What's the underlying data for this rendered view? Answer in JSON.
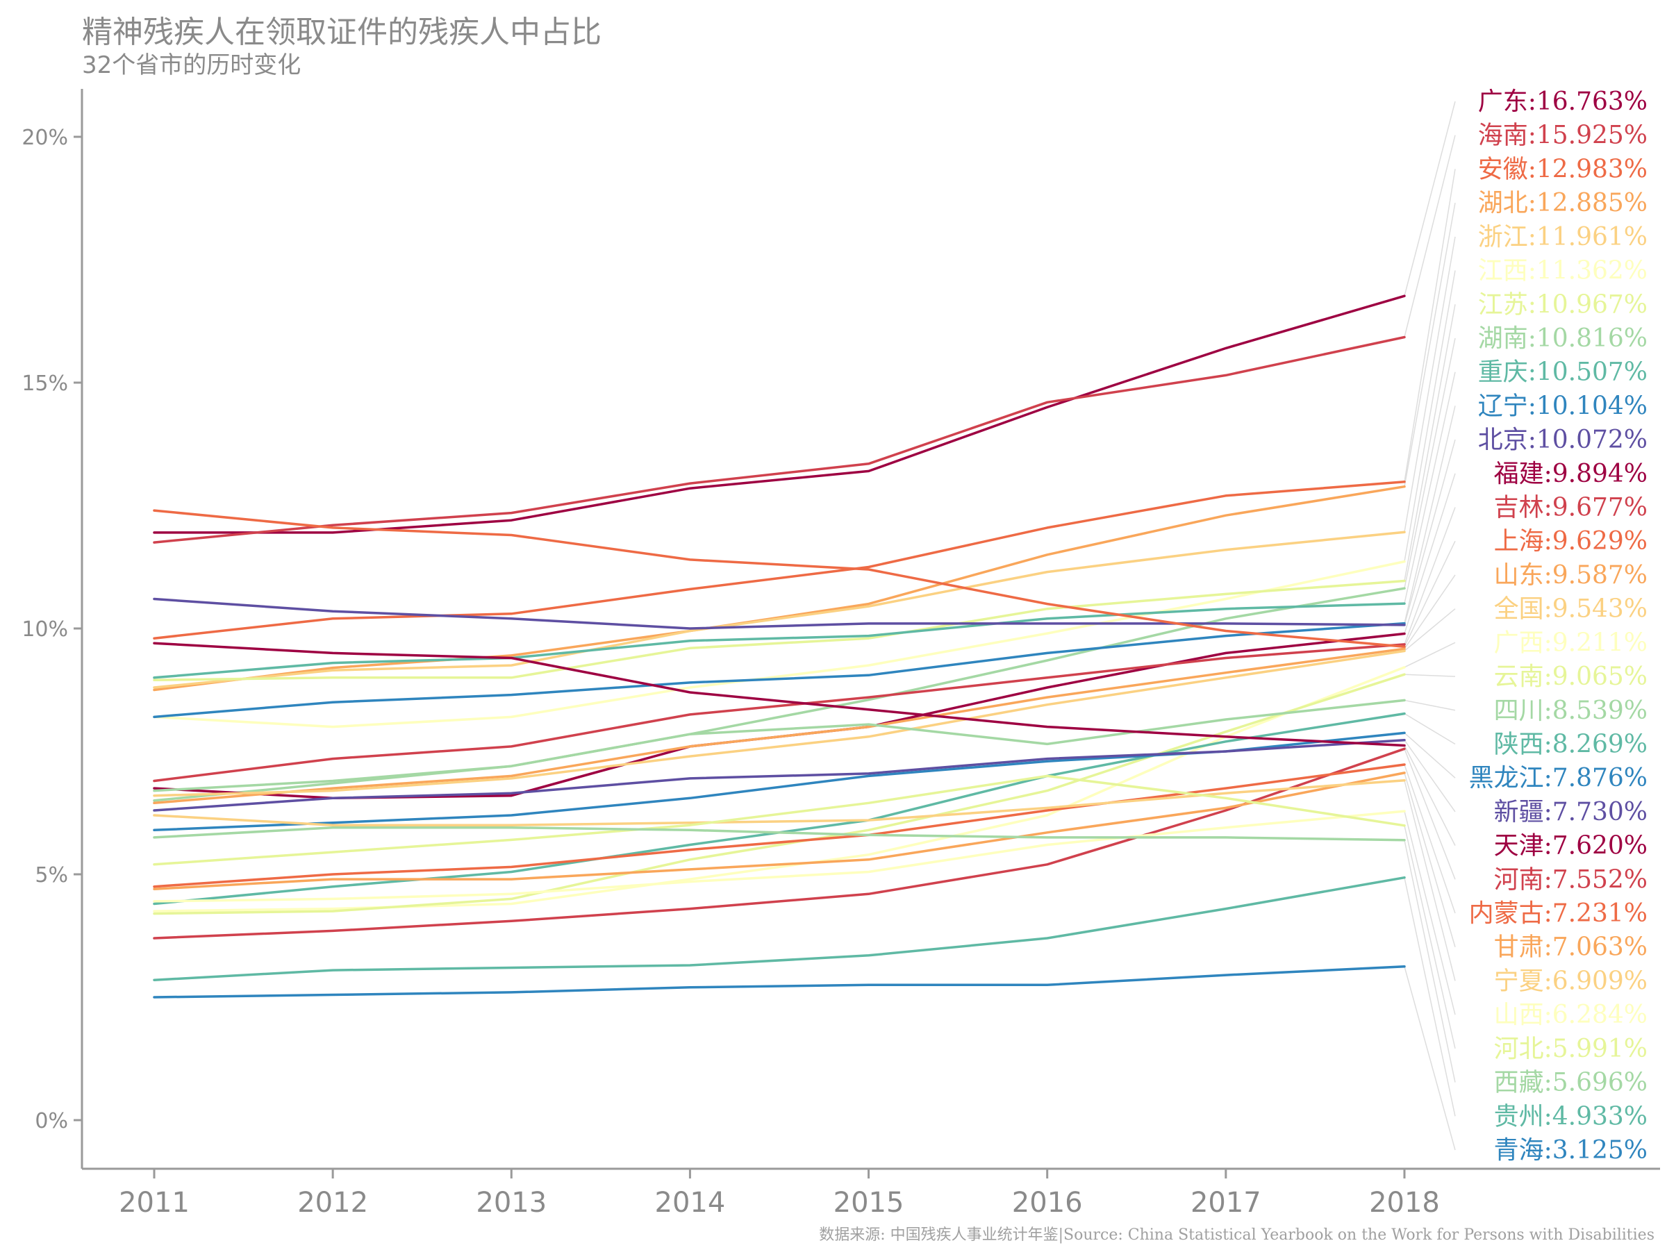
{
  "title": "精神残疾人在领取证件的残疾人中占比",
  "subtitle": "32个省市的历时变化",
  "source": "数据来源: 中国残疾人事业统计年鉴|Source: China Statistical Yearbook on the Work for Persons with Disabilities",
  "chart_data": {
    "type": "line",
    "title": "精神残疾人在领取证件的残疾人中占比",
    "subtitle": "32个省市的历时变化",
    "xlabel": "",
    "ylabel": "",
    "x": [
      "2011",
      "2012",
      "2013",
      "2014",
      "2015",
      "2016",
      "2017",
      "2018"
    ],
    "y_ticks": [
      "0%",
      "5%",
      "10%",
      "15%",
      "20%"
    ],
    "ylim": [
      -1,
      21
    ],
    "grid": false,
    "series": [
      {
        "name": "广东",
        "label": "广东:16.763%",
        "color": "#9e0142",
        "values": [
          11.95,
          11.95,
          12.2,
          12.85,
          13.2,
          14.5,
          15.7,
          16.763
        ]
      },
      {
        "name": "海南",
        "label": "海南:15.925%",
        "color": "#d0414d",
        "values": [
          11.75,
          12.1,
          12.35,
          12.95,
          13.35,
          14.6,
          15.15,
          15.925
        ]
      },
      {
        "name": "安徽",
        "label": "安徽:12.983%",
        "color": "#ee6a45",
        "values": [
          9.8,
          10.2,
          10.3,
          10.8,
          11.25,
          12.05,
          12.7,
          12.983
        ]
      },
      {
        "name": "湖北",
        "label": "湖北:12.885%",
        "color": "#f9a65a",
        "values": [
          8.75,
          9.2,
          9.45,
          9.95,
          10.5,
          11.5,
          12.3,
          12.885
        ]
      },
      {
        "name": "浙江",
        "label": "浙江:11.961%",
        "color": "#fbd182",
        "values": [
          8.8,
          9.15,
          9.25,
          9.95,
          10.45,
          11.15,
          11.6,
          11.961
        ]
      },
      {
        "name": "江西",
        "label": "江西:11.362%",
        "color": "#feffbe",
        "values": [
          8.2,
          8.0,
          8.2,
          8.8,
          9.25,
          9.9,
          10.6,
          11.362
        ]
      },
      {
        "name": "江苏",
        "label": "江苏:10.967%",
        "color": "#e6f598",
        "values": [
          8.95,
          9.0,
          9.0,
          9.6,
          9.8,
          10.4,
          10.7,
          10.967
        ]
      },
      {
        "name": "湖南",
        "label": "湖南:10.816%",
        "color": "#a4d8a4",
        "values": [
          6.5,
          6.85,
          7.2,
          7.85,
          8.55,
          9.35,
          10.2,
          10.816
        ]
      },
      {
        "name": "重庆",
        "label": "重庆:10.507%",
        "color": "#5fb9a4",
        "values": [
          9.0,
          9.3,
          9.4,
          9.75,
          9.85,
          10.2,
          10.4,
          10.507
        ]
      },
      {
        "name": "辽宁",
        "label": "辽宁:10.104%",
        "color": "#2f85be",
        "values": [
          8.2,
          8.5,
          8.65,
          8.9,
          9.05,
          9.5,
          9.85,
          10.104
        ]
      },
      {
        "name": "北京",
        "label": "北京:10.072%",
        "color": "#5e4fa2",
        "values": [
          10.6,
          10.35,
          10.2,
          10.0,
          10.1,
          10.1,
          10.1,
          10.072
        ]
      },
      {
        "name": "福建",
        "label": "福建:9.894%",
        "color": "#9e0142",
        "values": [
          6.75,
          6.55,
          6.6,
          7.6,
          8.0,
          8.8,
          9.5,
          9.894
        ]
      },
      {
        "name": "吉林",
        "label": "吉林:9.677%",
        "color": "#d0414d",
        "values": [
          6.9,
          7.35,
          7.6,
          8.25,
          8.6,
          9.0,
          9.4,
          9.677
        ]
      },
      {
        "name": "上海",
        "label": "上海:9.629%",
        "color": "#ee6a45",
        "values": [
          12.4,
          12.05,
          11.9,
          11.4,
          11.2,
          10.5,
          9.95,
          9.629
        ]
      },
      {
        "name": "山东",
        "label": "山东:9.587%",
        "color": "#f9a65a",
        "values": [
          6.45,
          6.75,
          7.0,
          7.6,
          8.0,
          8.6,
          9.1,
          9.587
        ]
      },
      {
        "name": "全国",
        "label": "全国:9.543%",
        "color": "#fbd182",
        "values": [
          6.6,
          6.7,
          6.95,
          7.4,
          7.8,
          8.45,
          9.0,
          9.543
        ]
      },
      {
        "name": "广西",
        "label": "广西:9.211%",
        "color": "#feffbe",
        "values": [
          4.25,
          4.3,
          4.4,
          4.9,
          5.4,
          6.2,
          7.8,
          9.211
        ]
      },
      {
        "name": "云南",
        "label": "云南:9.065%",
        "color": "#e6f598",
        "values": [
          4.2,
          4.25,
          4.5,
          5.3,
          5.9,
          6.7,
          7.9,
          9.065
        ]
      },
      {
        "name": "四川",
        "label": "四川:8.539%",
        "color": "#a4d8a4",
        "values": [
          6.7,
          6.9,
          7.2,
          7.85,
          8.05,
          7.65,
          8.15,
          8.539
        ]
      },
      {
        "name": "陕西",
        "label": "陕西:8.269%",
        "color": "#5fb9a4",
        "values": [
          4.4,
          4.75,
          5.05,
          5.6,
          6.1,
          7.0,
          7.7,
          8.269
        ]
      },
      {
        "name": "黑龙江",
        "label": "黑龙江:7.876%",
        "color": "#2f85be",
        "values": [
          5.9,
          6.05,
          6.2,
          6.55,
          7.0,
          7.3,
          7.5,
          7.876
        ]
      },
      {
        "name": "新疆",
        "label": "新疆:7.730%",
        "color": "#5e4fa2",
        "values": [
          6.3,
          6.55,
          6.65,
          6.95,
          7.05,
          7.35,
          7.5,
          7.73
        ]
      },
      {
        "name": "天津",
        "label": "天津:7.620%",
        "color": "#9e0142",
        "values": [
          9.7,
          9.5,
          9.4,
          8.7,
          8.35,
          8.0,
          7.8,
          7.62
        ]
      },
      {
        "name": "河南",
        "label": "河南:7.552%",
        "color": "#d0414d",
        "values": [
          3.7,
          3.85,
          4.05,
          4.3,
          4.6,
          5.2,
          6.3,
          7.552
        ]
      },
      {
        "name": "内蒙古",
        "label": "内蒙古:7.231%",
        "color": "#ee6a45",
        "values": [
          4.75,
          5.0,
          5.15,
          5.5,
          5.8,
          6.3,
          6.75,
          7.231
        ]
      },
      {
        "name": "甘肃",
        "label": "甘肃:7.063%",
        "color": "#f9a65a",
        "values": [
          4.7,
          4.9,
          4.9,
          5.1,
          5.3,
          5.85,
          6.35,
          7.063
        ]
      },
      {
        "name": "宁夏",
        "label": "宁夏:6.909%",
        "color": "#fbd182",
        "values": [
          6.2,
          6.0,
          6.0,
          6.05,
          6.1,
          6.35,
          6.65,
          6.909
        ]
      },
      {
        "name": "山西",
        "label": "山西:6.284%",
        "color": "#feffbe",
        "values": [
          4.45,
          4.5,
          4.6,
          4.85,
          5.05,
          5.6,
          5.95,
          6.284
        ]
      },
      {
        "name": "河北",
        "label": "河北:5.991%",
        "color": "#e6f598",
        "values": [
          5.2,
          5.45,
          5.7,
          6.0,
          6.45,
          7.0,
          6.55,
          5.991
        ]
      },
      {
        "name": "西藏",
        "label": "西藏:5.696%",
        "color": "#a4d8a4",
        "values": [
          5.75,
          5.95,
          5.95,
          5.9,
          5.8,
          5.75,
          5.75,
          5.696
        ]
      },
      {
        "name": "贵州",
        "label": "贵州:4.933%",
        "color": "#5fb9a4",
        "values": [
          2.85,
          3.05,
          3.1,
          3.15,
          3.35,
          3.7,
          4.3,
          4.933
        ]
      },
      {
        "name": "青海",
        "label": "青海:3.125%",
        "color": "#2f85be",
        "values": [
          2.5,
          2.55,
          2.6,
          2.7,
          2.75,
          2.75,
          2.95,
          3.125
        ]
      }
    ]
  }
}
